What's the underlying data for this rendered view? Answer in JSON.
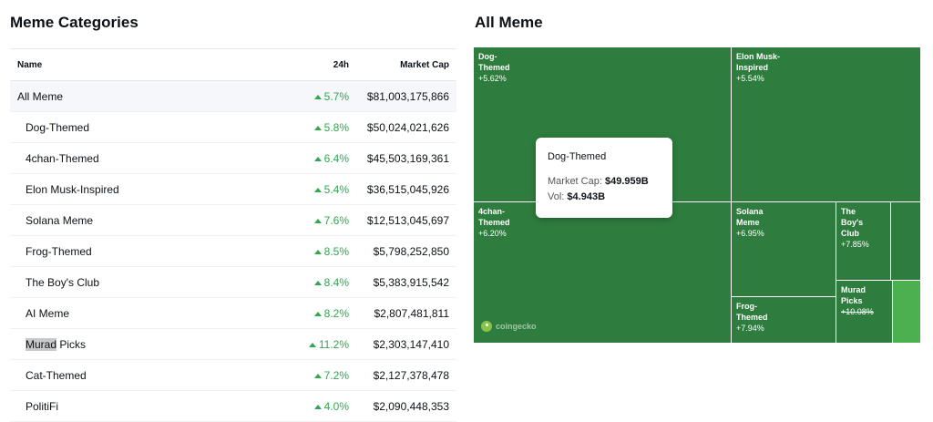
{
  "left_panel": {
    "title": "Meme Categories",
    "columns": {
      "name": "Name",
      "change_24h": "24h",
      "market_cap": "Market Cap"
    },
    "rows": [
      {
        "name": "All Meme",
        "change_24h": "5.7%",
        "market_cap": "$81,003,175,866"
      },
      {
        "name": "Dog-Themed",
        "change_24h": "5.8%",
        "market_cap": "$50,024,021,626"
      },
      {
        "name": "4chan-Themed",
        "change_24h": "6.4%",
        "market_cap": "$45,503,169,361"
      },
      {
        "name": "Elon Musk-Inspired",
        "change_24h": "5.4%",
        "market_cap": "$36,515,045,926"
      },
      {
        "name": "Solana Meme",
        "change_24h": "7.6%",
        "market_cap": "$12,513,045,697"
      },
      {
        "name": "Frog-Themed",
        "change_24h": "8.5%",
        "market_cap": "$5,798,252,850"
      },
      {
        "name": "The Boy's Club",
        "change_24h": "8.4%",
        "market_cap": "$5,383,915,542"
      },
      {
        "name": "AI Meme",
        "change_24h": "8.2%",
        "market_cap": "$2,807,481,811"
      },
      {
        "name_selected": "Murad",
        "name_rest": " Picks",
        "change_24h": "11.2%",
        "market_cap": "$2,303,147,410"
      },
      {
        "name": "Cat-Themed",
        "change_24h": "7.2%",
        "market_cap": "$2,127,378,478"
      },
      {
        "name": "PolitiFi",
        "change_24h": "4.0%",
        "market_cap": "$2,090,448,353"
      }
    ]
  },
  "right_panel": {
    "title": "All Meme",
    "tiles": {
      "dog": {
        "name": "Dog-Themed",
        "pct": "+5.62%",
        "color": "#2e7d3e"
      },
      "elon": {
        "name": "Elon Musk-Inspired",
        "pct": "+5.54%",
        "color": "#2e7d3e"
      },
      "fourchan": {
        "name": "4chan-Themed",
        "pct": "+6.20%",
        "color": "#2e7d3e"
      },
      "solana": {
        "name": "Solana Meme",
        "pct": "+6.95%",
        "color": "#2e7d3e"
      },
      "boys": {
        "name": "The Boy's Club",
        "pct": "+7.85%",
        "color": "#2e7d3e"
      },
      "frog": {
        "name": "Frog-Themed",
        "pct": "+7.94%",
        "color": "#2e7d3e"
      },
      "murad": {
        "name": "Murad Picks",
        "pct": "+10.08%",
        "color": "#2e7d3e"
      },
      "light": {
        "color": "#4caf50"
      }
    },
    "tooltip": {
      "title": "Dog-Themed",
      "market_cap_label": "Market Cap:",
      "market_cap_value": "$49.959B",
      "vol_label": "Vol:",
      "vol_value": "$4.943B"
    },
    "watermark": "coingecko"
  },
  "colors": {
    "positive": "#2fa84f",
    "tile": "#2e7d3e",
    "tile_bright": "#4caf50"
  }
}
